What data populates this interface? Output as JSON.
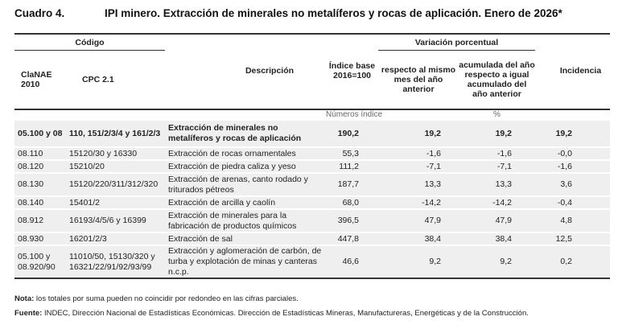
{
  "title": {
    "number": "Cuadro 4.",
    "text": "IPI minero. Extracción de minerales no metalíferos y rocas de aplicación. Enero de 2026*"
  },
  "header": {
    "codigo": "Código",
    "clanae": "ClaNAE 2010",
    "cpc": "CPC 2.1",
    "descripcion": "Descripción",
    "indice": "Índice base 2016=100",
    "variacion": "Variación porcentual",
    "respecto": "respecto al mismo mes del año anterior",
    "acumulada": "acumulada del año respecto a igual acumulado del año anterior",
    "incidencia": "Incidencia",
    "unit_index": "Números índice",
    "unit_pct": "%"
  },
  "rows": [
    {
      "clanae": "05.100 y 08",
      "cpc": "110, 151/2/3/4 y 161/2/3",
      "desc": "Extracción de minerales no metalíferos y rocas de aplicación",
      "indice": "190,2",
      "respecto": "19,2",
      "acumulada": "19,2",
      "incidencia": "19,2"
    },
    {
      "clanae": "08.110",
      "cpc": "15120/30 y 16330",
      "desc": "Extracción de rocas ornamentales",
      "indice": "55,3",
      "respecto": "-1,6",
      "acumulada": "-1,6",
      "incidencia": "-0,0"
    },
    {
      "clanae": "08.120",
      "cpc": "15210/20",
      "desc": "Extracción de piedra caliza y yeso",
      "indice": "111,2",
      "respecto": "-7,1",
      "acumulada": "-7,1",
      "incidencia": "-1,6"
    },
    {
      "clanae": "08.130",
      "cpc": "15120/220/311/312/320",
      "desc": "Extracción de arenas, canto rodado y triturados pétreos",
      "indice": "187,7",
      "respecto": "13,3",
      "acumulada": "13,3",
      "incidencia": "3,6"
    },
    {
      "clanae": "08.140",
      "cpc": "15401/2",
      "desc": "Extracción de arcilla y caolín",
      "indice": "68,0",
      "respecto": "-14,2",
      "acumulada": "-14,2",
      "incidencia": "-0,4"
    },
    {
      "clanae": "08.912",
      "cpc": "16193/4/5/6 y 16399",
      "desc": "Extracción de minerales para la fabricación de productos químicos",
      "indice": "396,5",
      "respecto": "47,9",
      "acumulada": "47,9",
      "incidencia": "4,8"
    },
    {
      "clanae": "08.930",
      "cpc": "16201/2/3",
      "desc": "Extracción de sal",
      "indice": "447,8",
      "respecto": "38,4",
      "acumulada": "38,4",
      "incidencia": "12,5"
    },
    {
      "clanae": "05.100 y 08.920/90",
      "cpc": "11010/50, 15130/320 y 16321/22/91/92/93/99",
      "desc": "Extracción y aglomeración de carbón, de turba y explotación de minas y canteras n.c.p.",
      "indice": "46,6",
      "respecto": "9,2",
      "acumulada": "9,2",
      "incidencia": "0,2"
    }
  ],
  "notes": {
    "nota_label": "Nota:",
    "nota_text": " los totales por suma pueden no coincidir por redondeo en las cifras parciales.",
    "fuente_label": "Fuente:",
    "fuente_text": " INDEC, Dirección Nacional de Estadísticas Económicas. Dirección de Estadísticas Mineras, Manufactureras, Energéticas y de la Construcción."
  }
}
